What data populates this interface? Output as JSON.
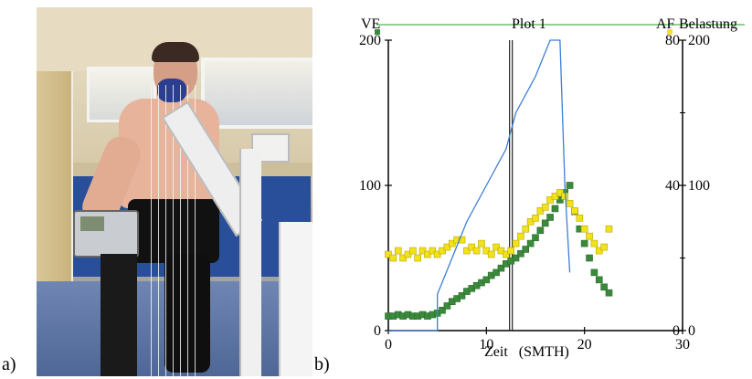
{
  "labels": {
    "a": "a)",
    "b": "b)"
  },
  "photo": {
    "description_icon": "photo-ergometer-test"
  },
  "chart_data": {
    "type": "scatter",
    "title": "Plot 1",
    "xlabel": "Zeit   (SMTH)",
    "left_axis_label": "VE",
    "right_axis_labels": [
      "AF",
      "Belastung"
    ],
    "xlim": [
      0,
      30
    ],
    "x_ticks": [
      "0",
      "10",
      "20",
      "30"
    ],
    "left_ylim": [
      0,
      200
    ],
    "left_ticks": [
      "0",
      "100",
      "200"
    ],
    "right_af_lim": [
      0,
      80
    ],
    "right_af_ticks": [
      "0",
      "40",
      "80"
    ],
    "right_load_lim": [
      0,
      200
    ],
    "right_load_ticks": [
      "0",
      "100",
      "200"
    ],
    "marker_x": 12.5,
    "colors": {
      "load": "#3b7fd6",
      "ve": "#3b8a3b",
      "af": "#f2e21a",
      "af_edge": "#b8a800",
      "title_line": "#6cc26c"
    },
    "series": [
      {
        "key": "ve",
        "axis": "left",
        "style": "square-markers",
        "points": [
          [
            0,
            10
          ],
          [
            0.5,
            10
          ],
          [
            1,
            11
          ],
          [
            1.5,
            10
          ],
          [
            2,
            11
          ],
          [
            2.5,
            10
          ],
          [
            3,
            10
          ],
          [
            3.5,
            11
          ],
          [
            4,
            10
          ],
          [
            4.5,
            11
          ],
          [
            5,
            12
          ],
          [
            5.5,
            14
          ],
          [
            6,
            17
          ],
          [
            6.5,
            20
          ],
          [
            7,
            22
          ],
          [
            7.5,
            24
          ],
          [
            8,
            27
          ],
          [
            8.5,
            29
          ],
          [
            9,
            31
          ],
          [
            9.5,
            33
          ],
          [
            10,
            35
          ],
          [
            10.5,
            38
          ],
          [
            11,
            40
          ],
          [
            11.5,
            43
          ],
          [
            12,
            46
          ],
          [
            12.5,
            48
          ],
          [
            13,
            50
          ],
          [
            13.5,
            53
          ],
          [
            14,
            56
          ],
          [
            14.5,
            60
          ],
          [
            15,
            64
          ],
          [
            15.5,
            69
          ],
          [
            16,
            74
          ],
          [
            16.5,
            78
          ],
          [
            17,
            84
          ],
          [
            17.5,
            90
          ],
          [
            18,
            95
          ],
          [
            18.5,
            100
          ],
          [
            19,
            82
          ],
          [
            19.5,
            70
          ],
          [
            20,
            60
          ],
          [
            20.5,
            50
          ],
          [
            21,
            40
          ],
          [
            21.5,
            35
          ],
          [
            22,
            30
          ],
          [
            22.5,
            26
          ]
        ]
      },
      {
        "key": "af",
        "axis": "right-af",
        "style": "square-markers",
        "points": [
          [
            0,
            21
          ],
          [
            0.5,
            20
          ],
          [
            1,
            22
          ],
          [
            1.5,
            20
          ],
          [
            2,
            21
          ],
          [
            2.5,
            22
          ],
          [
            3,
            20
          ],
          [
            3.5,
            22
          ],
          [
            4,
            21
          ],
          [
            4.5,
            22
          ],
          [
            5,
            21
          ],
          [
            5.5,
            22
          ],
          [
            6,
            23
          ],
          [
            6.5,
            24
          ],
          [
            7,
            25
          ],
          [
            7.5,
            25
          ],
          [
            8,
            22
          ],
          [
            8.5,
            23
          ],
          [
            9,
            22
          ],
          [
            9.5,
            24
          ],
          [
            10,
            22
          ],
          [
            10.5,
            21
          ],
          [
            11,
            23
          ],
          [
            11.5,
            22
          ],
          [
            12,
            21
          ],
          [
            12.5,
            22
          ],
          [
            13,
            24
          ],
          [
            13.5,
            26
          ],
          [
            14,
            28
          ],
          [
            14.5,
            30
          ],
          [
            15,
            31
          ],
          [
            15.5,
            33
          ],
          [
            16,
            34
          ],
          [
            16.5,
            36
          ],
          [
            17,
            37
          ],
          [
            17.5,
            38
          ],
          [
            18,
            37
          ],
          [
            18.5,
            35
          ],
          [
            19,
            33
          ],
          [
            19.5,
            31
          ],
          [
            20,
            28
          ],
          [
            20.5,
            26
          ],
          [
            21,
            24
          ],
          [
            21.5,
            22
          ],
          [
            22,
            23
          ],
          [
            22.5,
            28
          ]
        ]
      },
      {
        "key": "load",
        "axis": "right-load",
        "style": "step-line",
        "points": [
          [
            0,
            0
          ],
          [
            5,
            0
          ],
          [
            5,
            25
          ],
          [
            6.5,
            50
          ],
          [
            8,
            75
          ],
          [
            10,
            100
          ],
          [
            12,
            125
          ],
          [
            13,
            150
          ],
          [
            15,
            175
          ],
          [
            16.5,
            200
          ],
          [
            17.5,
            200
          ],
          [
            18,
            100
          ],
          [
            18.5,
            40
          ]
        ]
      }
    ]
  }
}
